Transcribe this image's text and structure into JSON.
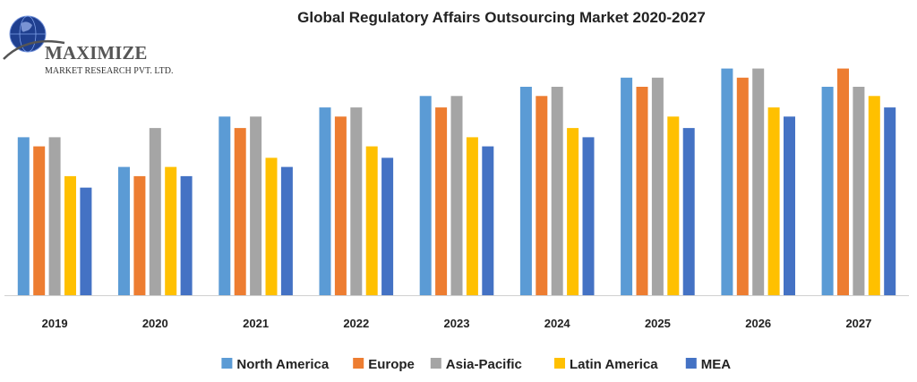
{
  "logo": {
    "name": "MAXIMIZE",
    "subtitle": "MARKET RESEARCH PVT. LTD."
  },
  "chart_data": {
    "type": "bar",
    "title": "Global Regulatory Affairs Outsourcing Market 2020-2027",
    "xlabel": "",
    "ylabel": "",
    "ylim": [
      0,
      100
    ],
    "grid": false,
    "legend_position": "bottom",
    "categories": [
      "2019",
      "2020",
      "2021",
      "2022",
      "2023",
      "2024",
      "2025",
      "2026",
      "2027"
    ],
    "series": [
      {
        "name": "North America",
        "color": "#5b9bd5",
        "values": [
          69,
          56,
          78,
          82,
          87,
          91,
          95,
          99,
          91
        ]
      },
      {
        "name": "Europe",
        "color": "#ed7d31",
        "values": [
          65,
          52,
          73,
          78,
          82,
          87,
          91,
          95,
          99
        ]
      },
      {
        "name": "Asia-Pacific",
        "color": "#a5a5a5",
        "values": [
          69,
          73,
          78,
          82,
          87,
          91,
          95,
          99,
          91
        ]
      },
      {
        "name": "Latin America",
        "color": "#ffc000",
        "values": [
          52,
          56,
          60,
          65,
          69,
          73,
          78,
          82,
          87
        ]
      },
      {
        "name": "MEA",
        "color": "#4472c4",
        "values": [
          47,
          52,
          56,
          60,
          65,
          69,
          73,
          78,
          82
        ]
      }
    ]
  }
}
